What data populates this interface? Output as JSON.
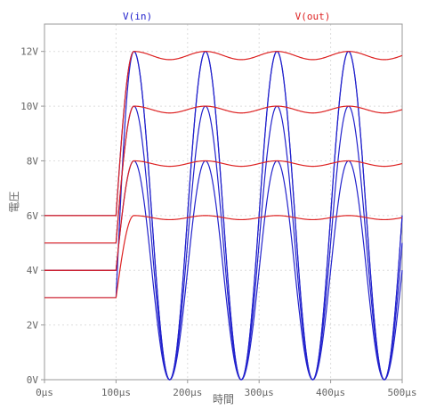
{
  "chart_data": {
    "type": "line",
    "xlabel": "時間",
    "ylabel": "電圧",
    "xlim": [
      0,
      500
    ],
    "ylim": [
      0,
      13
    ],
    "x_ticks": [
      "0µs",
      "100µs",
      "200µs",
      "300µs",
      "400µs",
      "500µs"
    ],
    "x_tick_values": [
      0,
      100,
      200,
      300,
      400,
      500
    ],
    "y_ticks": [
      "0V",
      "2V",
      "4V",
      "6V",
      "8V",
      "10V",
      "12V"
    ],
    "y_tick_values": [
      0,
      2,
      4,
      6,
      8,
      10,
      12
    ],
    "grid": true,
    "legend": [
      {
        "label": "V(in)",
        "color": "#2222cc"
      },
      {
        "label": "V(out)",
        "color": "#dd2222"
      }
    ],
    "series": [
      {
        "legend": "V(in)",
        "color": "#2222cc",
        "curves": [
          {
            "dc_before_100us": 3,
            "sine_amplitude": 6,
            "sine_period_us": 100,
            "sine_center": 6
          },
          {
            "dc_before_100us": 4,
            "sine_amplitude": 4,
            "sine_period_us": 100,
            "sine_center": 4
          },
          {
            "dc_before_100us": 5,
            "sine_amplitude": 5,
            "sine_period_us": 100,
            "sine_center": 5
          },
          {
            "dc_before_100us": 6,
            "sine_amplitude": 6,
            "sine_period_us": 100,
            "sine_center": 6
          }
        ]
      },
      {
        "legend": "V(out)",
        "color": "#dd2222",
        "curves": [
          {
            "dc_before_100us": 3,
            "peak": 6,
            "min_ripple": 5.85,
            "period_us": 100
          },
          {
            "dc_before_100us": 4,
            "peak": 8,
            "min_ripple": 7.8,
            "period_us": 100
          },
          {
            "dc_before_100us": 5,
            "peak": 10,
            "min_ripple": 9.75,
            "period_us": 100
          },
          {
            "dc_before_100us": 6,
            "peak": 12,
            "min_ripple": 11.7,
            "period_us": 100
          }
        ]
      }
    ]
  }
}
